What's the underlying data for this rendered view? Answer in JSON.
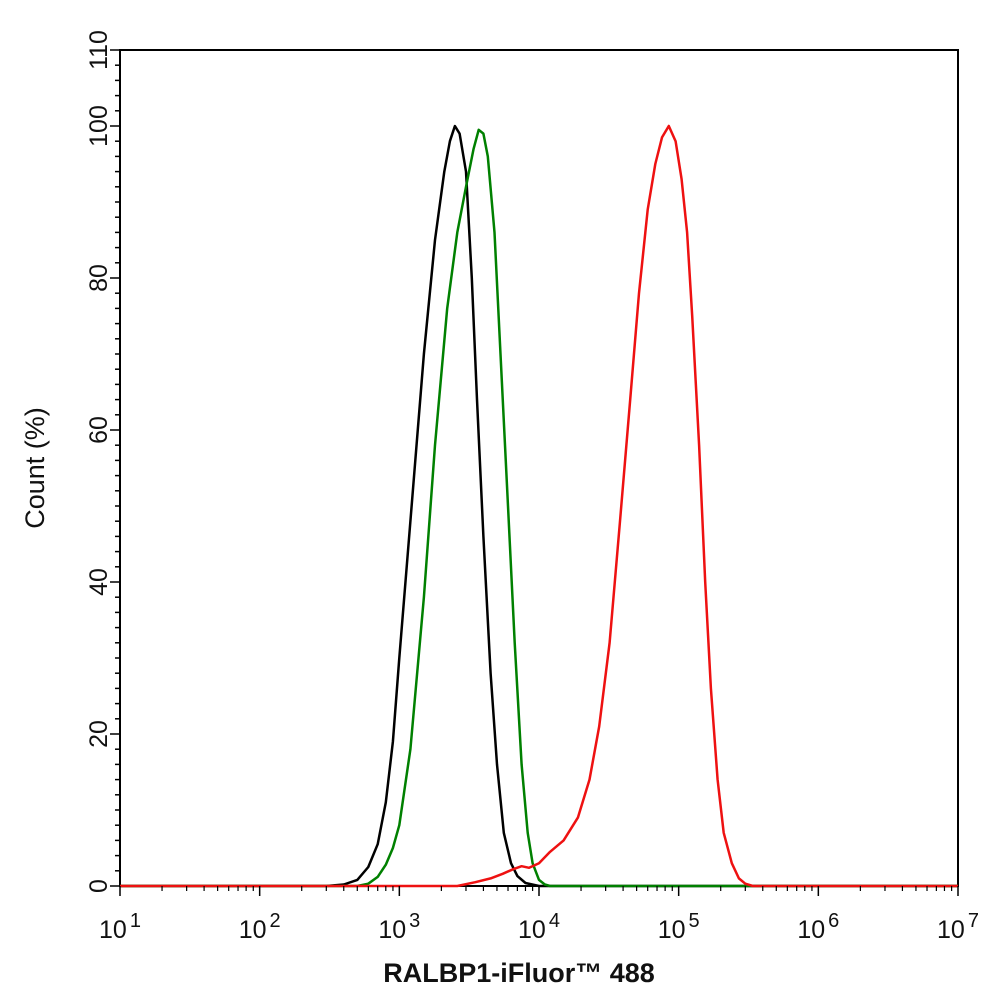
{
  "chart_data": {
    "type": "line",
    "title": "",
    "xlabel": "RALBP1-iFluor™ 488",
    "ylabel": "Count  (%)",
    "xscale": "log",
    "xlim": [
      10,
      10000000
    ],
    "ylim": [
      0,
      110
    ],
    "grid": false,
    "legend": "none",
    "x_ticks": [
      {
        "value": 10,
        "base": "10",
        "exp": "1"
      },
      {
        "value": 100,
        "base": "10",
        "exp": "2"
      },
      {
        "value": 1000,
        "base": "10",
        "exp": "3"
      },
      {
        "value": 10000,
        "base": "10",
        "exp": "4"
      },
      {
        "value": 100000,
        "base": "10",
        "exp": "5"
      },
      {
        "value": 1000000,
        "base": "10",
        "exp": "6"
      },
      {
        "value": 10000000,
        "base": "10",
        "exp": "7"
      }
    ],
    "y_ticks": [
      {
        "value": 0,
        "label": "0"
      },
      {
        "value": 20,
        "label": "20"
      },
      {
        "value": 40,
        "label": "40"
      },
      {
        "value": 60,
        "label": "60"
      },
      {
        "value": 80,
        "label": "80"
      },
      {
        "value": 100,
        "label": "100"
      },
      {
        "value": 110,
        "label": "110"
      }
    ],
    "series": [
      {
        "color": "#000000",
        "points": [
          [
            10,
            0
          ],
          [
            300,
            0
          ],
          [
            400,
            0.2
          ],
          [
            500,
            0.8
          ],
          [
            600,
            2.5
          ],
          [
            700,
            5.5
          ],
          [
            800,
            11
          ],
          [
            900,
            19
          ],
          [
            1000,
            30
          ],
          [
            1200,
            48
          ],
          [
            1500,
            70
          ],
          [
            1800,
            85
          ],
          [
            2100,
            94
          ],
          [
            2300,
            98
          ],
          [
            2500,
            100
          ],
          [
            2700,
            99
          ],
          [
            3000,
            94
          ],
          [
            3300,
            80
          ],
          [
            3600,
            64
          ],
          [
            4000,
            46
          ],
          [
            4500,
            28
          ],
          [
            5000,
            16
          ],
          [
            5600,
            7
          ],
          [
            6300,
            3
          ],
          [
            7000,
            1.3
          ],
          [
            8000,
            0.4
          ],
          [
            10000,
            0
          ],
          [
            10000000,
            0
          ]
        ]
      },
      {
        "color": "#008000",
        "points": [
          [
            10,
            0
          ],
          [
            500,
            0
          ],
          [
            600,
            0.3
          ],
          [
            700,
            1.2
          ],
          [
            800,
            2.8
          ],
          [
            900,
            5
          ],
          [
            1000,
            8
          ],
          [
            1200,
            18
          ],
          [
            1500,
            38
          ],
          [
            1800,
            58
          ],
          [
            2200,
            76
          ],
          [
            2600,
            86
          ],
          [
            3000,
            92
          ],
          [
            3400,
            97
          ],
          [
            3700,
            99.5
          ],
          [
            4000,
            99
          ],
          [
            4300,
            96
          ],
          [
            4800,
            86
          ],
          [
            5300,
            70
          ],
          [
            6000,
            50
          ],
          [
            6700,
            32
          ],
          [
            7500,
            16
          ],
          [
            8300,
            7
          ],
          [
            9000,
            3
          ],
          [
            10000,
            0.8
          ],
          [
            11000,
            0.2
          ],
          [
            12000,
            0
          ],
          [
            10000000,
            0
          ]
        ]
      },
      {
        "color": "#ee1111",
        "points": [
          [
            10,
            0
          ],
          [
            2600,
            0
          ],
          [
            3500,
            0.5
          ],
          [
            4500,
            1
          ],
          [
            5500,
            1.6
          ],
          [
            6500,
            2.2
          ],
          [
            7500,
            2.6
          ],
          [
            8500,
            2.4
          ],
          [
            10000,
            3
          ],
          [
            12000,
            4.5
          ],
          [
            15000,
            6
          ],
          [
            19000,
            9
          ],
          [
            23000,
            14
          ],
          [
            27000,
            21
          ],
          [
            32000,
            32
          ],
          [
            38000,
            48
          ],
          [
            45000,
            64
          ],
          [
            52000,
            78
          ],
          [
            60000,
            89
          ],
          [
            68000,
            95
          ],
          [
            76000,
            98.5
          ],
          [
            85000,
            100
          ],
          [
            95000,
            98
          ],
          [
            105000,
            93
          ],
          [
            115000,
            86
          ],
          [
            125000,
            75
          ],
          [
            140000,
            58
          ],
          [
            155000,
            40
          ],
          [
            170000,
            26
          ],
          [
            190000,
            14
          ],
          [
            210000,
            7
          ],
          [
            240000,
            3
          ],
          [
            270000,
            1
          ],
          [
            300000,
            0.3
          ],
          [
            340000,
            0
          ],
          [
            10000000,
            0
          ]
        ]
      }
    ]
  }
}
